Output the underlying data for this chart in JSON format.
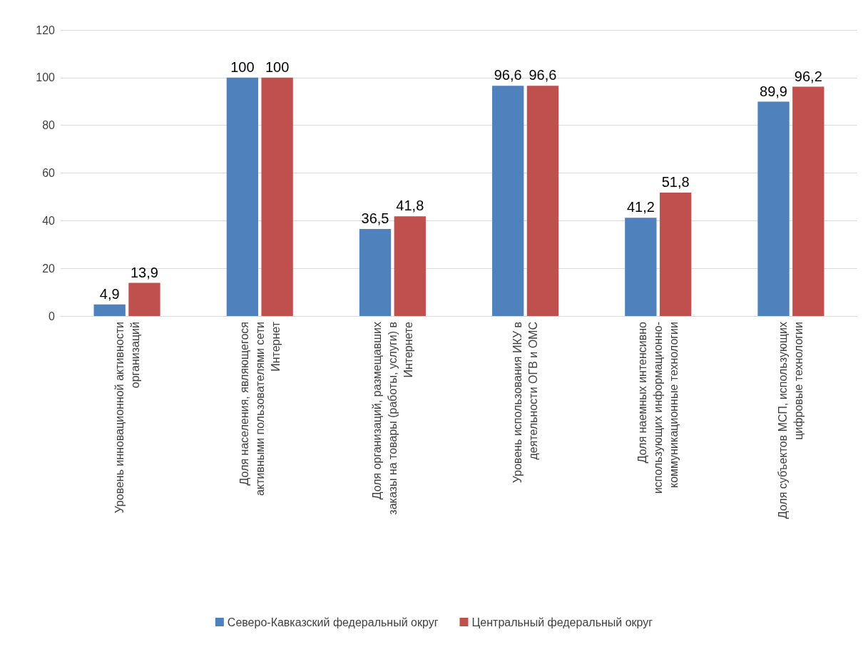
{
  "chart_data": {
    "type": "bar",
    "categories": [
      "Уровень инновационной активности организаций",
      "Доля населения, являющегося активными пользователями сети Интернет",
      "Доля организаций, размещавших заказы на товары (работы, услуги) в Интернете",
      "Уровень использования ИКУ в деятельности ОГВ и ОМС",
      "Доля наемных интенсивно использующих информационно-коммуникационные технологии",
      "Доля субъектов МСП, использующих цифровые технологии"
    ],
    "series": [
      {
        "name": "Северо-Кавказский федеральный округ",
        "color": "#4f81bd",
        "values": [
          4.9,
          100,
          36.5,
          96.6,
          41.2,
          89.9
        ],
        "value_labels": [
          "4,9",
          "100",
          "36,5",
          "96,6",
          "41,2",
          "89,9"
        ]
      },
      {
        "name": "Центральный федеральный округ",
        "color": "#c0504d",
        "values": [
          13.9,
          100,
          41.8,
          96.6,
          51.8,
          96.2
        ],
        "value_labels": [
          "13,9",
          "100",
          "41,8",
          "96,6",
          "51,8",
          "96,2"
        ]
      }
    ],
    "ylim": [
      0,
      120
    ],
    "yticks": [
      0,
      20,
      40,
      60,
      80,
      100,
      120
    ],
    "grid": "y",
    "legend": "bottom"
  }
}
